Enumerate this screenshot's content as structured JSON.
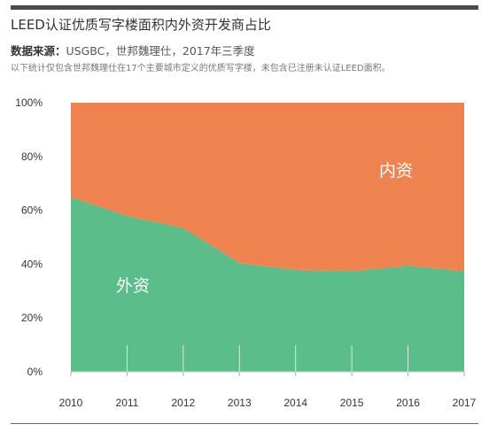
{
  "header": {
    "title": "LEED认证优质写字楼面积内外资开发商占比",
    "source_label": "数据来源：",
    "source_text": "USGBC，世邦魏理仕，2017年三季度",
    "note": "以下统计仅包含世邦魏理仕在17个主要城市定义的优质写字楼，未包含已注册未认证LEED面积。"
  },
  "chart_data": {
    "type": "area",
    "stacked": true,
    "x": [
      "2010",
      "2011",
      "2012",
      "2013",
      "2014",
      "2015",
      "2016",
      "2017"
    ],
    "ylim": [
      0,
      100
    ],
    "yticks": [
      "0%",
      "20%",
      "40%",
      "60%",
      "80%",
      "100%"
    ],
    "series": [
      {
        "name": "外资",
        "values": [
          65,
          58,
          53.5,
          40.5,
          38,
          37.5,
          39.5,
          37.5
        ],
        "color": "#5bbd8a"
      },
      {
        "name": "内资",
        "values": [
          35,
          42,
          46.5,
          59.5,
          62,
          62.5,
          60.5,
          62.5
        ],
        "color": "#ee834f"
      }
    ],
    "grid": false,
    "legend": "in-area labels",
    "xlabel": "",
    "ylabel": ""
  }
}
